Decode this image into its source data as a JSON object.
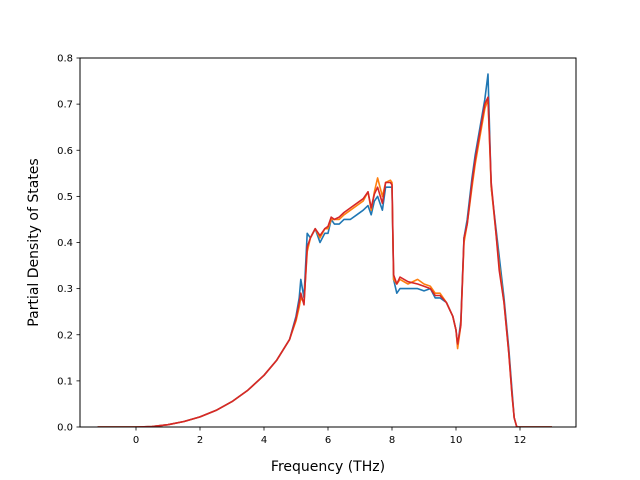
{
  "chart_data": {
    "type": "line",
    "title": "",
    "xlabel": "Frequency (THz)",
    "ylabel": "Partial Density of States",
    "xlim": [
      -1.75,
      13.75
    ],
    "ylim": [
      0.0,
      0.8
    ],
    "xticks": [
      0,
      2,
      4,
      6,
      8,
      10,
      12
    ],
    "yticks": [
      0.0,
      0.1,
      0.2,
      0.3,
      0.4,
      0.5,
      0.6,
      0.7,
      0.8
    ],
    "xtick_labels": [
      "0",
      "2",
      "4",
      "6",
      "8",
      "10",
      "12"
    ],
    "ytick_labels": [
      "0.0",
      "0.1",
      "0.2",
      "0.3",
      "0.4",
      "0.5",
      "0.6",
      "0.7",
      "0.8"
    ],
    "grid": false,
    "legend": "none",
    "series": [
      {
        "color": "#1f77b4",
        "points": [
          [
            -1.2,
            0
          ],
          [
            0,
            0
          ],
          [
            0.5,
            0.001
          ],
          [
            1,
            0.005
          ],
          [
            1.5,
            0.012
          ],
          [
            2,
            0.022
          ],
          [
            2.5,
            0.036
          ],
          [
            3,
            0.055
          ],
          [
            3.5,
            0.08
          ],
          [
            4,
            0.112
          ],
          [
            4.4,
            0.145
          ],
          [
            4.8,
            0.19
          ],
          [
            5.0,
            0.24
          ],
          [
            5.1,
            0.28
          ],
          [
            5.15,
            0.32
          ],
          [
            5.25,
            0.28
          ],
          [
            5.35,
            0.42
          ],
          [
            5.45,
            0.41
          ],
          [
            5.6,
            0.43
          ],
          [
            5.75,
            0.4
          ],
          [
            5.9,
            0.42
          ],
          [
            6.0,
            0.42
          ],
          [
            6.1,
            0.45
          ],
          [
            6.2,
            0.44
          ],
          [
            6.35,
            0.44
          ],
          [
            6.5,
            0.45
          ],
          [
            6.7,
            0.45
          ],
          [
            6.9,
            0.46
          ],
          [
            7.1,
            0.47
          ],
          [
            7.25,
            0.48
          ],
          [
            7.35,
            0.46
          ],
          [
            7.45,
            0.49
          ],
          [
            7.55,
            0.5
          ],
          [
            7.7,
            0.47
          ],
          [
            7.8,
            0.52
          ],
          [
            7.95,
            0.52
          ],
          [
            8.0,
            0.52
          ],
          [
            8.05,
            0.32
          ],
          [
            8.15,
            0.29
          ],
          [
            8.25,
            0.3
          ],
          [
            8.5,
            0.3
          ],
          [
            8.8,
            0.3
          ],
          [
            9.0,
            0.295
          ],
          [
            9.2,
            0.3
          ],
          [
            9.35,
            0.28
          ],
          [
            9.5,
            0.28
          ],
          [
            9.7,
            0.27
          ],
          [
            9.9,
            0.24
          ],
          [
            10.0,
            0.21
          ],
          [
            10.05,
            0.175
          ],
          [
            10.15,
            0.23
          ],
          [
            10.25,
            0.41
          ],
          [
            10.35,
            0.45
          ],
          [
            10.5,
            0.54
          ],
          [
            10.6,
            0.59
          ],
          [
            10.75,
            0.65
          ],
          [
            10.9,
            0.71
          ],
          [
            11.0,
            0.765
          ],
          [
            11.1,
            0.52
          ],
          [
            11.25,
            0.43
          ],
          [
            11.35,
            0.37
          ],
          [
            11.5,
            0.28
          ],
          [
            11.65,
            0.17
          ],
          [
            11.75,
            0.08
          ],
          [
            11.82,
            0.02
          ],
          [
            11.9,
            0
          ],
          [
            13.0,
            0
          ]
        ]
      },
      {
        "color": "#ff7f0e",
        "points": [
          [
            -1.2,
            0
          ],
          [
            0,
            0
          ],
          [
            0.5,
            0.001
          ],
          [
            1,
            0.005
          ],
          [
            1.5,
            0.012
          ],
          [
            2,
            0.022
          ],
          [
            2.5,
            0.036
          ],
          [
            3,
            0.055
          ],
          [
            3.5,
            0.08
          ],
          [
            4,
            0.112
          ],
          [
            4.4,
            0.145
          ],
          [
            4.8,
            0.19
          ],
          [
            5.0,
            0.23
          ],
          [
            5.1,
            0.26
          ],
          [
            5.15,
            0.28
          ],
          [
            5.25,
            0.27
          ],
          [
            5.35,
            0.38
          ],
          [
            5.45,
            0.41
          ],
          [
            5.6,
            0.43
          ],
          [
            5.75,
            0.41
          ],
          [
            5.9,
            0.43
          ],
          [
            6.0,
            0.43
          ],
          [
            6.1,
            0.45
          ],
          [
            6.2,
            0.45
          ],
          [
            6.35,
            0.45
          ],
          [
            6.5,
            0.46
          ],
          [
            6.7,
            0.47
          ],
          [
            6.9,
            0.48
          ],
          [
            7.1,
            0.49
          ],
          [
            7.25,
            0.51
          ],
          [
            7.35,
            0.47
          ],
          [
            7.45,
            0.51
          ],
          [
            7.55,
            0.54
          ],
          [
            7.7,
            0.5
          ],
          [
            7.8,
            0.53
          ],
          [
            7.95,
            0.535
          ],
          [
            8.0,
            0.53
          ],
          [
            8.05,
            0.32
          ],
          [
            8.15,
            0.31
          ],
          [
            8.25,
            0.32
          ],
          [
            8.5,
            0.31
          ],
          [
            8.8,
            0.32
          ],
          [
            9.0,
            0.31
          ],
          [
            9.2,
            0.305
          ],
          [
            9.35,
            0.29
          ],
          [
            9.5,
            0.29
          ],
          [
            9.7,
            0.27
          ],
          [
            9.9,
            0.24
          ],
          [
            10.0,
            0.21
          ],
          [
            10.05,
            0.17
          ],
          [
            10.15,
            0.22
          ],
          [
            10.25,
            0.4
          ],
          [
            10.35,
            0.44
          ],
          [
            10.5,
            0.52
          ],
          [
            10.6,
            0.57
          ],
          [
            10.75,
            0.63
          ],
          [
            10.9,
            0.69
          ],
          [
            11.0,
            0.71
          ],
          [
            11.1,
            0.52
          ],
          [
            11.25,
            0.42
          ],
          [
            11.35,
            0.35
          ],
          [
            11.5,
            0.27
          ],
          [
            11.65,
            0.16
          ],
          [
            11.75,
            0.07
          ],
          [
            11.82,
            0.02
          ],
          [
            11.9,
            0
          ],
          [
            13.0,
            0
          ]
        ]
      },
      {
        "color": "#d62728",
        "points": [
          [
            -1.2,
            0
          ],
          [
            0,
            0
          ],
          [
            0.5,
            0.001
          ],
          [
            1,
            0.005
          ],
          [
            1.5,
            0.012
          ],
          [
            2,
            0.022
          ],
          [
            2.5,
            0.036
          ],
          [
            3,
            0.055
          ],
          [
            3.5,
            0.08
          ],
          [
            4,
            0.112
          ],
          [
            4.4,
            0.145
          ],
          [
            4.8,
            0.19
          ],
          [
            5.0,
            0.235
          ],
          [
            5.1,
            0.27
          ],
          [
            5.15,
            0.29
          ],
          [
            5.25,
            0.265
          ],
          [
            5.35,
            0.39
          ],
          [
            5.45,
            0.41
          ],
          [
            5.6,
            0.43
          ],
          [
            5.75,
            0.415
          ],
          [
            5.9,
            0.43
          ],
          [
            6.0,
            0.435
          ],
          [
            6.1,
            0.455
          ],
          [
            6.2,
            0.45
          ],
          [
            6.35,
            0.455
          ],
          [
            6.5,
            0.465
          ],
          [
            6.7,
            0.475
          ],
          [
            6.9,
            0.485
          ],
          [
            7.1,
            0.495
          ],
          [
            7.25,
            0.51
          ],
          [
            7.35,
            0.475
          ],
          [
            7.45,
            0.505
          ],
          [
            7.55,
            0.52
          ],
          [
            7.7,
            0.485
          ],
          [
            7.8,
            0.53
          ],
          [
            7.95,
            0.53
          ],
          [
            8.0,
            0.525
          ],
          [
            8.05,
            0.33
          ],
          [
            8.15,
            0.31
          ],
          [
            8.25,
            0.325
          ],
          [
            8.5,
            0.315
          ],
          [
            8.8,
            0.31
          ],
          [
            9.0,
            0.305
          ],
          [
            9.2,
            0.3
          ],
          [
            9.35,
            0.285
          ],
          [
            9.5,
            0.285
          ],
          [
            9.7,
            0.27
          ],
          [
            9.9,
            0.24
          ],
          [
            10.0,
            0.21
          ],
          [
            10.05,
            0.18
          ],
          [
            10.15,
            0.22
          ],
          [
            10.25,
            0.41
          ],
          [
            10.35,
            0.44
          ],
          [
            10.5,
            0.53
          ],
          [
            10.6,
            0.58
          ],
          [
            10.75,
            0.64
          ],
          [
            10.9,
            0.7
          ],
          [
            11.0,
            0.715
          ],
          [
            11.1,
            0.53
          ],
          [
            11.25,
            0.42
          ],
          [
            11.35,
            0.34
          ],
          [
            11.5,
            0.27
          ],
          [
            11.65,
            0.16
          ],
          [
            11.75,
            0.07
          ],
          [
            11.82,
            0.02
          ],
          [
            11.9,
            0
          ],
          [
            13.0,
            0
          ]
        ]
      }
    ]
  }
}
